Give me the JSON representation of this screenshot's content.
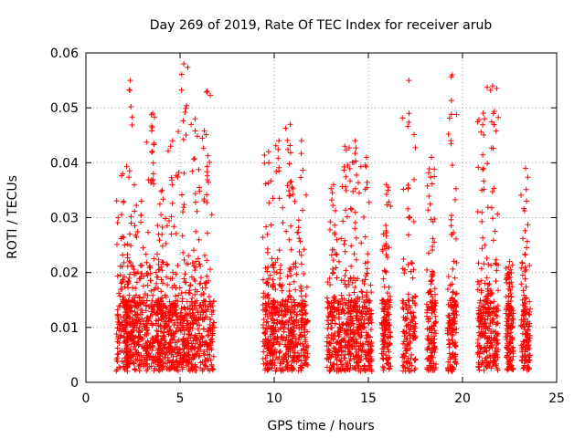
{
  "chart_data": {
    "type": "scatter",
    "title": "Day 269 of 2019, Rate Of TEC Index for receiver arub",
    "xlabel": "GPS time / hours",
    "ylabel": "ROTI / TECUs",
    "xlim": [
      0,
      25
    ],
    "ylim": [
      0,
      0.06
    ],
    "xticks": [
      0,
      5,
      10,
      15,
      20,
      25
    ],
    "yticks": [
      0,
      0.01,
      0.02,
      0.03,
      0.04,
      0.05,
      0.06
    ],
    "xtick_labels": [
      "0",
      "5",
      "10",
      "15",
      "20",
      "25"
    ],
    "ytick_labels": [
      "0",
      "0.01",
      "0.02",
      "0.03",
      "0.04",
      "0.05",
      "0.06"
    ],
    "grid": true,
    "marker": "+",
    "marker_color": "#ff0000",
    "clusters": [
      {
        "x_start": 1.6,
        "x_end": 2.3,
        "y_top": 0.038
      },
      {
        "x_start": 2.1,
        "x_end": 2.6,
        "y_top": 0.055
      },
      {
        "x_start": 2.6,
        "x_end": 3.3,
        "y_top": 0.033
      },
      {
        "x_start": 3.2,
        "x_end": 3.9,
        "y_top": 0.049
      },
      {
        "x_start": 3.8,
        "x_end": 4.3,
        "y_top": 0.035
      },
      {
        "x_start": 4.3,
        "x_end": 4.9,
        "y_top": 0.044
      },
      {
        "x_start": 4.9,
        "x_end": 5.5,
        "y_top": 0.058
      },
      {
        "x_start": 5.5,
        "x_end": 6.1,
        "y_top": 0.048
      },
      {
        "x_start": 6.1,
        "x_end": 6.8,
        "y_top": 0.053
      },
      {
        "x_start": 9.4,
        "x_end": 10.0,
        "y_top": 0.042
      },
      {
        "x_start": 9.9,
        "x_end": 10.6,
        "y_top": 0.044
      },
      {
        "x_start": 10.6,
        "x_end": 11.1,
        "y_top": 0.047
      },
      {
        "x_start": 11.1,
        "x_end": 11.8,
        "y_top": 0.044
      },
      {
        "x_start": 12.8,
        "x_end": 13.5,
        "y_top": 0.036
      },
      {
        "x_start": 13.4,
        "x_end": 14.1,
        "y_top": 0.043
      },
      {
        "x_start": 14.0,
        "x_end": 14.6,
        "y_top": 0.044
      },
      {
        "x_start": 14.6,
        "x_end": 15.2,
        "y_top": 0.041
      },
      {
        "x_start": 15.7,
        "x_end": 16.2,
        "y_top": 0.036
      },
      {
        "x_start": 16.8,
        "x_end": 17.5,
        "y_top": 0.055
      },
      {
        "x_start": 18.1,
        "x_end": 18.6,
        "y_top": 0.041
      },
      {
        "x_start": 19.2,
        "x_end": 19.7,
        "y_top": 0.056
      },
      {
        "x_start": 20.8,
        "x_end": 21.4,
        "y_top": 0.049
      },
      {
        "x_start": 21.3,
        "x_end": 21.9,
        "y_top": 0.054
      },
      {
        "x_start": 22.3,
        "x_end": 22.7,
        "y_top": 0.022
      },
      {
        "x_start": 23.1,
        "x_end": 23.6,
        "y_top": 0.039
      }
    ],
    "y_floor": 0.002
  }
}
